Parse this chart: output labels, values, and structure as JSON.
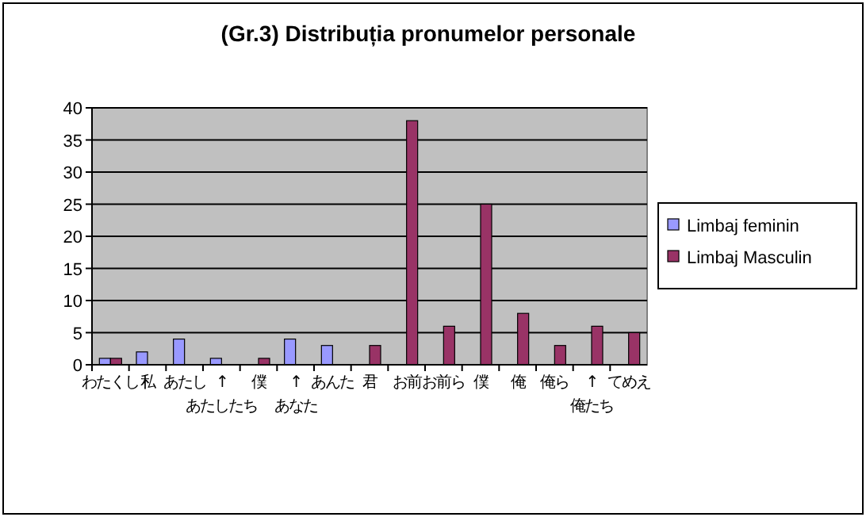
{
  "chart_data": {
    "type": "bar",
    "title": "(Gr.3)   Distribuția pronumelor personale",
    "categories": [
      "わたくし",
      "私",
      "あたし",
      "↑\nあたしたち",
      "僕",
      "↑\nあなた",
      "あんた",
      "君",
      "お前",
      "お前ら",
      "僕",
      "俺",
      "俺ら",
      "↑\n俺たち",
      "てめえ"
    ],
    "series": [
      {
        "name": "Limbaj feminin",
        "color": "#9999ff",
        "values": [
          1,
          2,
          4,
          1,
          null,
          4,
          3,
          null,
          null,
          null,
          null,
          null,
          null,
          null,
          null
        ]
      },
      {
        "name": "Limbaj Masculin",
        "color": "#993366",
        "values": [
          1,
          null,
          null,
          null,
          1,
          null,
          null,
          3,
          38,
          6,
          25,
          8,
          3,
          6,
          5
        ]
      }
    ],
    "ylim": [
      0,
      40
    ],
    "yticks": [
      0,
      5,
      10,
      15,
      20,
      25,
      30,
      35,
      40
    ],
    "grid": "y",
    "legend": "right"
  }
}
